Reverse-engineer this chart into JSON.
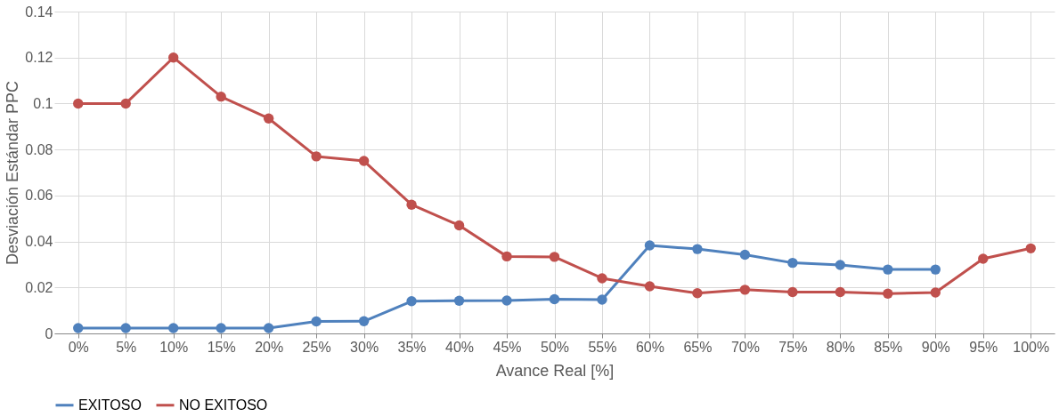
{
  "chart_data": {
    "type": "line",
    "xlabel": "Avance Real [%]",
    "ylabel": "Desviación Estándar PPC",
    "categories": [
      "0%",
      "5%",
      "10%",
      "15%",
      "20%",
      "25%",
      "30%",
      "35%",
      "40%",
      "45%",
      "50%",
      "55%",
      "60%",
      "65%",
      "70%",
      "75%",
      "80%",
      "85%",
      "90%",
      "95%",
      "100%"
    ],
    "series": [
      {
        "name": "EXITOSO",
        "color": "#4f81bd",
        "values": [
          0.0023,
          0.0023,
          0.0023,
          0.0023,
          0.0023,
          0.0052,
          0.0053,
          0.014,
          0.0142,
          0.0143,
          0.0149,
          0.0147,
          0.0383,
          0.0367,
          0.0342,
          0.0307,
          0.0298,
          0.0278,
          0.0278,
          null,
          null
        ]
      },
      {
        "name": "NO EXITOSO",
        "color": "#c0504d",
        "values": [
          0.1,
          0.1,
          0.12,
          0.103,
          0.0935,
          0.077,
          0.075,
          0.056,
          0.047,
          0.0335,
          0.0333,
          0.024,
          0.0205,
          0.0175,
          0.019,
          0.018,
          0.018,
          0.0173,
          0.0178,
          0.0325,
          0.037
        ]
      }
    ],
    "ylim": [
      0,
      0.14
    ],
    "yticks": [
      0,
      0.02,
      0.04,
      0.06,
      0.08,
      0.1,
      0.12,
      0.14
    ],
    "grid": true,
    "legend": "bottom",
    "marker": "circle",
    "line_style": "solid"
  }
}
